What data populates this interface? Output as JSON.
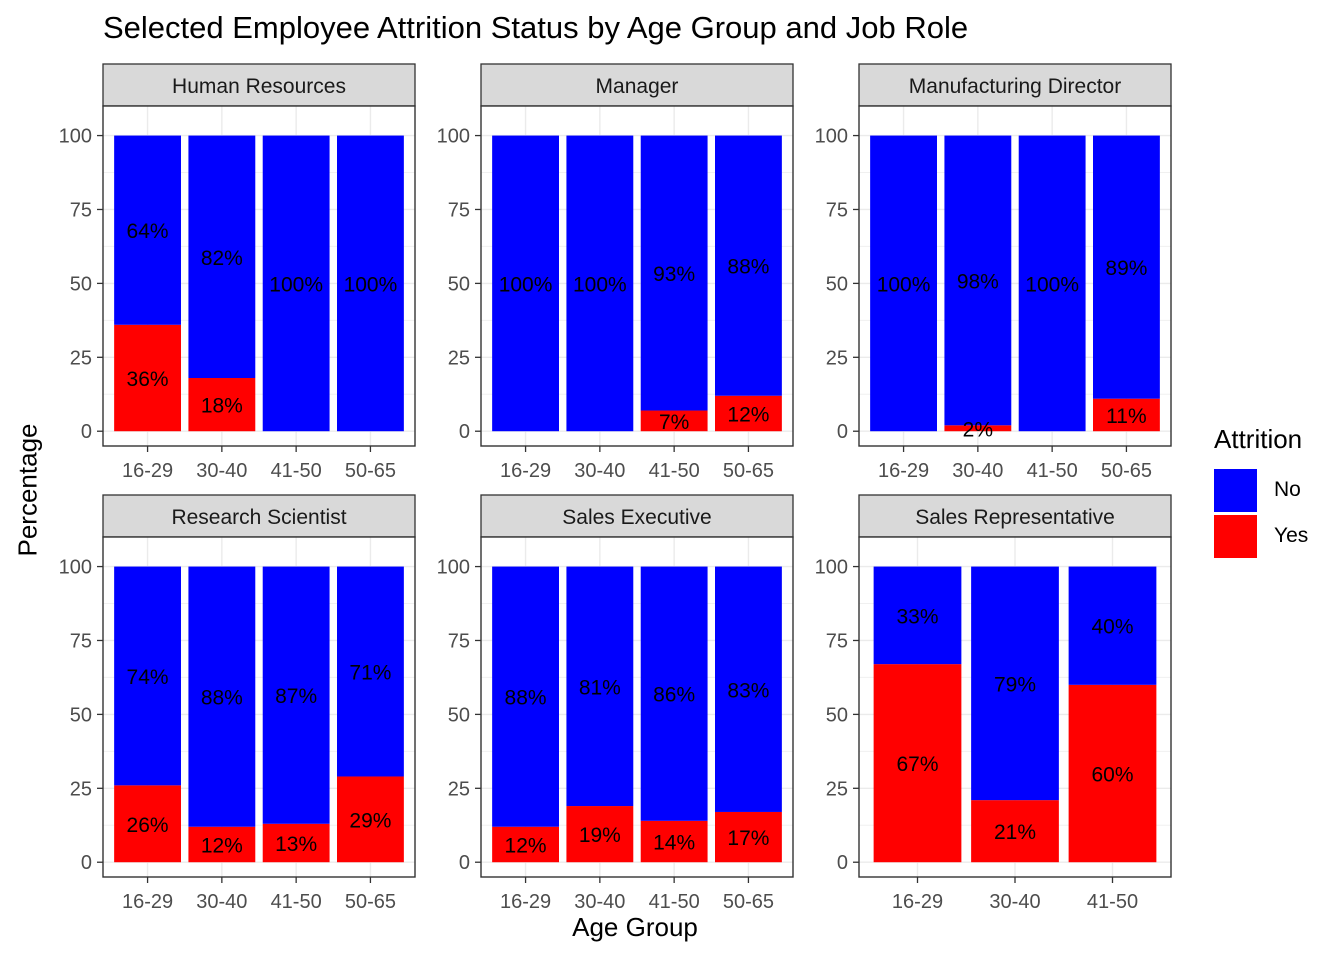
{
  "chart_data": {
    "type": "bar",
    "stacked": true,
    "title": "Selected Employee Attrition Status by Age Group and Job Role",
    "xlabel": "Age Group",
    "ylabel": "Percentage",
    "ylim": [
      0,
      100
    ],
    "yticks": [
      0,
      25,
      50,
      75,
      100
    ],
    "grid": true,
    "legend": {
      "title": "Attrition",
      "placement": "right",
      "entries": [
        {
          "name": "No",
          "color": "#0000FF"
        },
        {
          "name": "Yes",
          "color": "#FF0000"
        }
      ]
    },
    "series_names": [
      "No",
      "Yes"
    ],
    "colors": {
      "No": "#0000FF",
      "Yes": "#FF0000"
    },
    "panels": [
      {
        "name": "Human Resources",
        "categories": [
          "16-29",
          "30-40",
          "41-50",
          "50-65"
        ],
        "no": [
          64,
          82,
          100,
          100
        ],
        "yes": [
          36,
          18,
          0,
          0
        ],
        "no_labels": [
          "64%",
          "82%",
          "100%",
          "100%"
        ],
        "yes_labels": [
          "36%",
          "18%",
          "",
          ""
        ]
      },
      {
        "name": "Manager",
        "categories": [
          "16-29",
          "30-40",
          "41-50",
          "50-65"
        ],
        "no": [
          100,
          100,
          93,
          88
        ],
        "yes": [
          0,
          0,
          7,
          12
        ],
        "no_labels": [
          "100%",
          "100%",
          "93%",
          "88%"
        ],
        "yes_labels": [
          "",
          "",
          "7%",
          "12%"
        ]
      },
      {
        "name": "Manufacturing Director",
        "categories": [
          "16-29",
          "30-40",
          "41-50",
          "50-65"
        ],
        "no": [
          100,
          98,
          100,
          89
        ],
        "yes": [
          0,
          2,
          0,
          11
        ],
        "no_labels": [
          "100%",
          "98%",
          "100%",
          "89%"
        ],
        "yes_labels": [
          "",
          "2%",
          "",
          "11%"
        ]
      },
      {
        "name": "Research Scientist",
        "categories": [
          "16-29",
          "30-40",
          "41-50",
          "50-65"
        ],
        "no": [
          74,
          88,
          87,
          71
        ],
        "yes": [
          26,
          12,
          13,
          29
        ],
        "no_labels": [
          "74%",
          "88%",
          "87%",
          "71%"
        ],
        "yes_labels": [
          "26%",
          "12%",
          "13%",
          "29%"
        ]
      },
      {
        "name": "Sales Executive",
        "categories": [
          "16-29",
          "30-40",
          "41-50",
          "50-65"
        ],
        "no": [
          88,
          81,
          86,
          83
        ],
        "yes": [
          12,
          19,
          14,
          17
        ],
        "no_labels": [
          "88%",
          "81%",
          "86%",
          "83%"
        ],
        "yes_labels": [
          "12%",
          "19%",
          "14%",
          "17%"
        ]
      },
      {
        "name": "Sales Representative",
        "categories": [
          "16-29",
          "30-40",
          "41-50"
        ],
        "no": [
          33,
          79,
          40
        ],
        "yes": [
          67,
          21,
          60
        ],
        "no_labels": [
          "33%",
          "79%",
          "40%"
        ],
        "yes_labels": [
          "67%",
          "21%",
          "60%"
        ]
      }
    ]
  }
}
